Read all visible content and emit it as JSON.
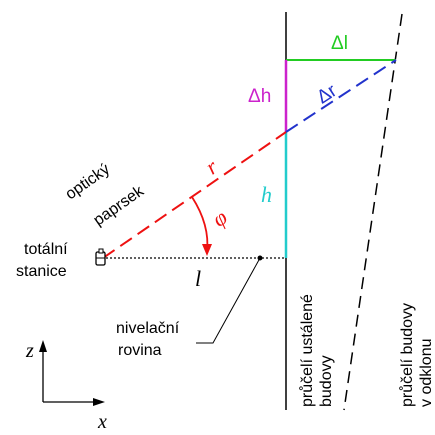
{
  "labels": {
    "delta_l": "Δl",
    "delta_h": "Δh",
    "delta_r": "Δr",
    "r": "r",
    "h": "h",
    "phi": "φ",
    "l": "l",
    "optical_ray_line1": "optický",
    "optical_ray_line2": "paprsek",
    "total_station_line1": "totální",
    "total_station_line2": "stanice",
    "level_plane_line1": "nivelační",
    "level_plane_line2": "rovina",
    "facade_stable_line1": "průčelí ustálené",
    "facade_stable_line2": "budovy",
    "facade_tilt_line1": "průčelí budovy",
    "facade_tilt_line2": "v odklonu",
    "axis_z": "z",
    "axis_x": "x"
  },
  "colors": {
    "delta_l": "#22cc22",
    "delta_h": "#cc22cc",
    "delta_r": "#2233cc",
    "r": "#ee1111",
    "h": "#22cccc",
    "phi": "#ee1111",
    "line": "#000000"
  }
}
